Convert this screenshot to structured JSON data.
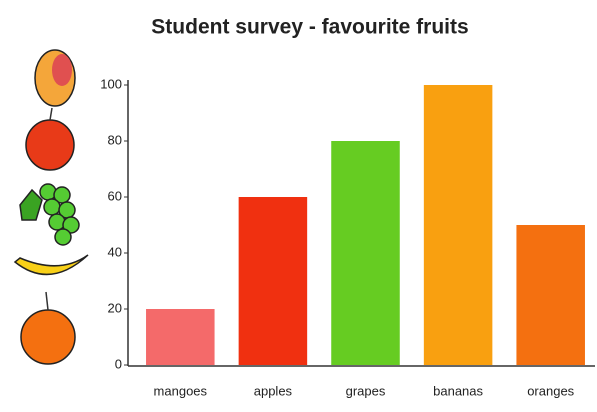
{
  "chart_data": {
    "type": "bar",
    "title": "Student survey - favourite fruits",
    "categories": [
      "mangoes",
      "apples",
      "grapes",
      "bananas",
      "oranges"
    ],
    "values": [
      20,
      60,
      80,
      100,
      50
    ],
    "colors": [
      "#f46a6a",
      "#f03010",
      "#66cc22",
      "#f9a010",
      "#f47010"
    ],
    "ylim": [
      0,
      100
    ],
    "yticks": [
      0,
      20,
      40,
      60,
      80,
      100
    ],
    "grid": false
  }
}
